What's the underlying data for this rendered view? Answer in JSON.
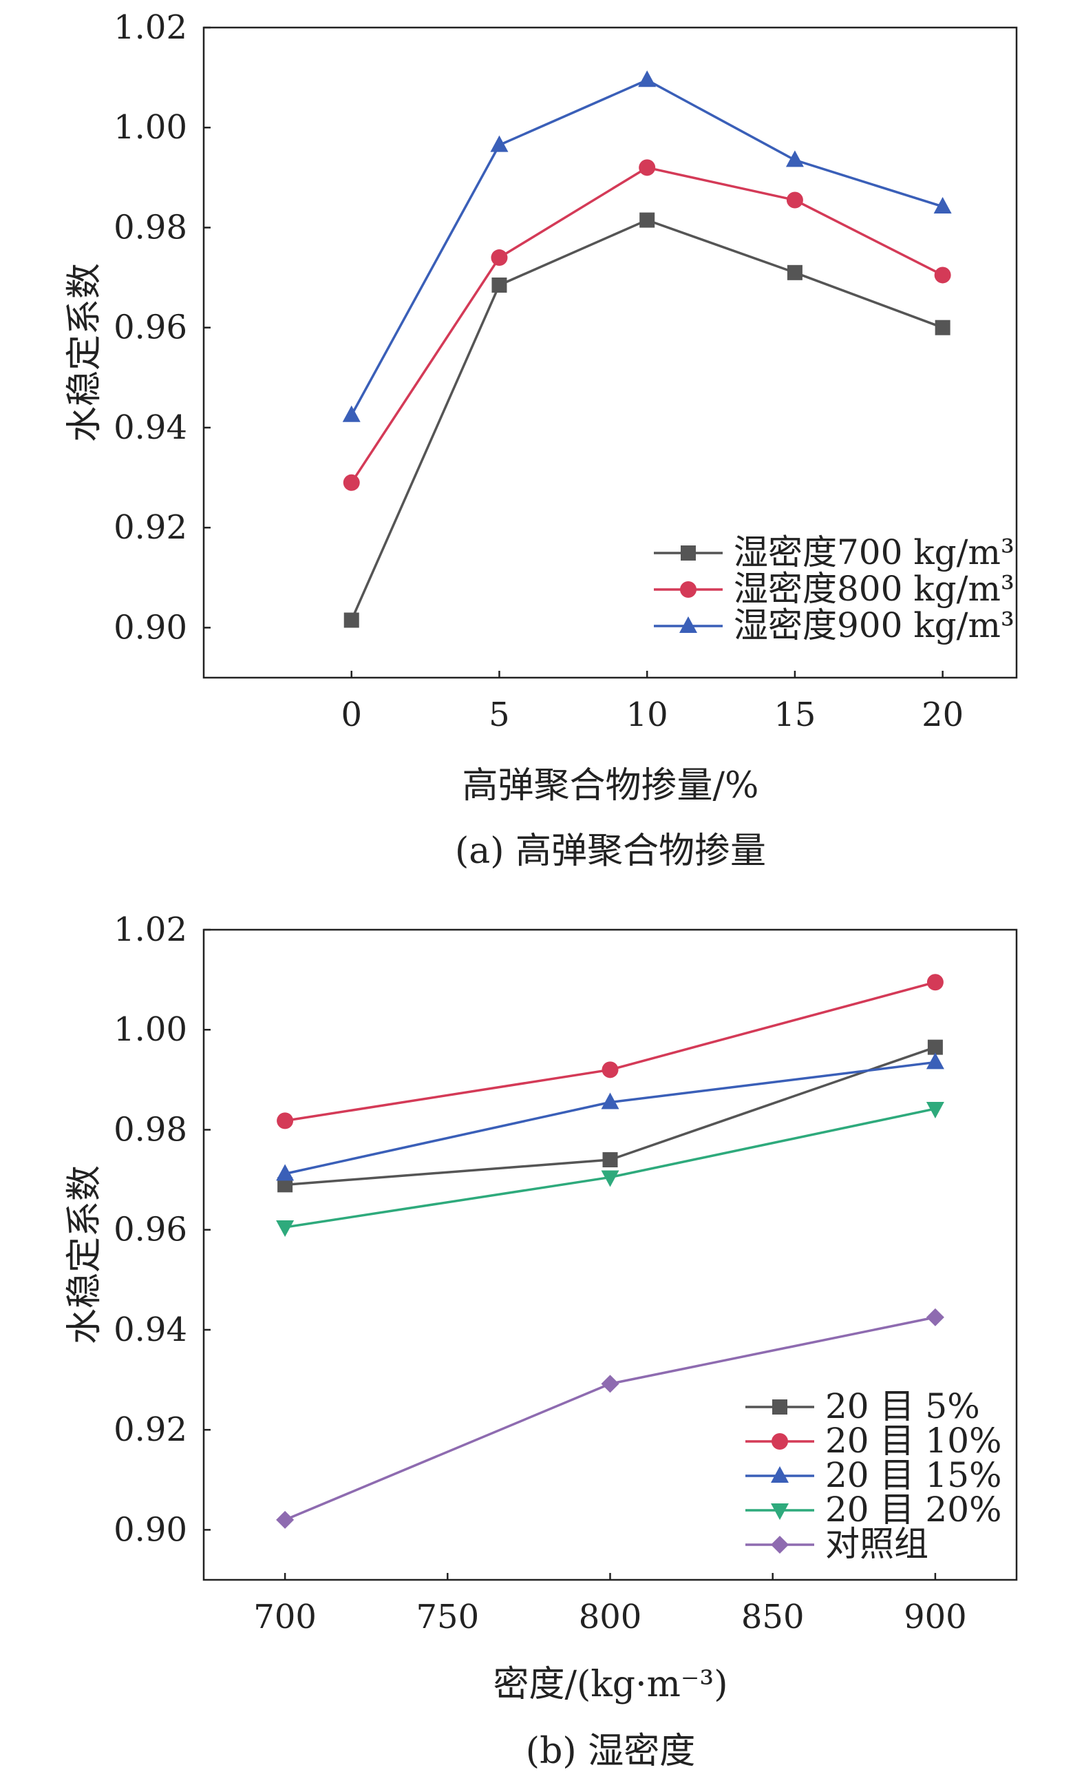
{
  "chart_data": [
    {
      "type": "line",
      "caption": "(a) 高弹聚合物掺量",
      "xlabel": "高弹聚合物掺量/%",
      "ylabel": "水稳定系数",
      "x": [
        0,
        5,
        10,
        15,
        20
      ],
      "xticks": [
        "0",
        "5",
        "10",
        "15",
        "20"
      ],
      "xlim": [
        -5,
        22.5
      ],
      "ylim": [
        0.89,
        1.02
      ],
      "yticks": [
        "0.90",
        "0.92",
        "0.94",
        "0.96",
        "0.98",
        "1.00",
        "1.02"
      ],
      "grid": false,
      "legend_position": "bottom-right",
      "series": [
        {
          "name": "湿密度700 kg/m³",
          "color": "#555555",
          "marker": "square",
          "values": [
            0.9015,
            0.9685,
            0.9815,
            0.971,
            0.96
          ]
        },
        {
          "name": "湿密度800 kg/m³",
          "color": "#d43a57",
          "marker": "circle",
          "values": [
            0.929,
            0.974,
            0.992,
            0.9855,
            0.9705
          ]
        },
        {
          "name": "湿密度900 kg/m³",
          "color": "#3a5fb8",
          "marker": "triangle-up",
          "values": [
            0.9425,
            0.9965,
            1.0095,
            0.9935,
            0.9842
          ]
        }
      ]
    },
    {
      "type": "line",
      "caption": "(b) 湿密度",
      "xlabel": "密度/(kg·m⁻³)",
      "ylabel": "水稳定系数",
      "x": [
        700,
        800,
        900
      ],
      "xticks": [
        "700",
        "750",
        "800",
        "850",
        "900"
      ],
      "xtick_values": [
        700,
        750,
        800,
        850,
        900
      ],
      "xlim": [
        675,
        925
      ],
      "ylim": [
        0.89,
        1.02
      ],
      "yticks": [
        "0.90",
        "0.92",
        "0.94",
        "0.96",
        "0.98",
        "1.00",
        "1.02"
      ],
      "grid": false,
      "legend_position": "bottom-right",
      "series": [
        {
          "name": "20 目 5%",
          "color": "#555555",
          "marker": "square",
          "values": [
            0.969,
            0.974,
            0.9965
          ]
        },
        {
          "name": "20 目 10%",
          "color": "#d43a57",
          "marker": "circle",
          "values": [
            0.9818,
            0.992,
            1.0095
          ]
        },
        {
          "name": "20 目 15%",
          "color": "#3a5fb8",
          "marker": "triangle-up",
          "values": [
            0.9712,
            0.9855,
            0.9935
          ]
        },
        {
          "name": "20 目 20%",
          "color": "#2eaa7c",
          "marker": "triangle-down",
          "values": [
            0.9605,
            0.9705,
            0.9842
          ]
        },
        {
          "name": "对照组",
          "color": "#8e6bb0",
          "marker": "diamond",
          "values": [
            0.902,
            0.9292,
            0.9425
          ]
        }
      ]
    }
  ]
}
